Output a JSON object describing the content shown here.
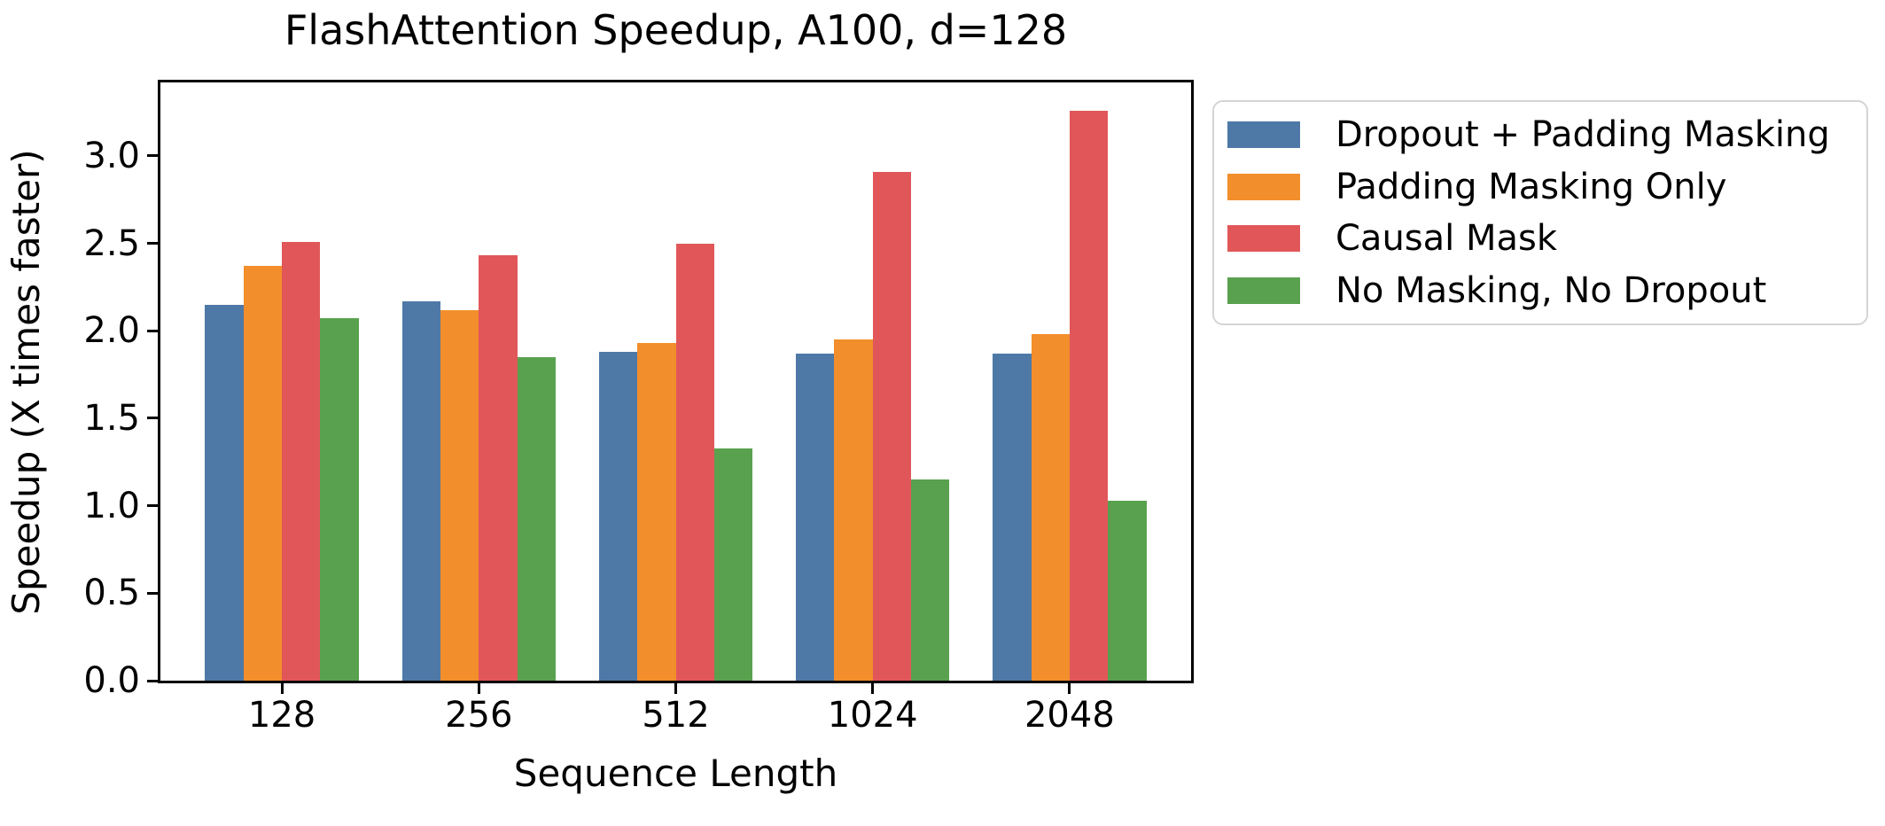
{
  "figure": {
    "background": "#ffffff",
    "axis_color": "#000000",
    "legend_border_color": "#d4d4d4"
  },
  "chart_data": {
    "type": "bar",
    "title": "FlashAttention Speedup, A100, d=128",
    "xlabel": "Sequence Length",
    "ylabel": "Speedup (X times faster)",
    "categories": [
      "128",
      "256",
      "512",
      "1024",
      "2048"
    ],
    "series": [
      {
        "name": "Dropout + Padding Masking",
        "color": "#4e79a7",
        "values": [
          2.15,
          2.17,
          1.88,
          1.87,
          1.87
        ]
      },
      {
        "name": "Padding Masking Only",
        "color": "#f28e2b",
        "values": [
          2.37,
          2.12,
          1.93,
          1.95,
          1.98
        ]
      },
      {
        "name": "Causal Mask",
        "color": "#e15759",
        "values": [
          2.51,
          2.43,
          2.5,
          2.91,
          3.26
        ]
      },
      {
        "name": "No Masking, No Dropout",
        "color": "#59a14f",
        "values": [
          2.07,
          1.85,
          1.33,
          1.15,
          1.03
        ]
      }
    ],
    "y_ticks": [
      0.0,
      0.5,
      1.0,
      1.5,
      2.0,
      2.5,
      3.0
    ],
    "y_tick_labels": [
      "0.0",
      "0.5",
      "1.0",
      "1.5",
      "2.0",
      "2.5",
      "3.0"
    ],
    "ylim": [
      0,
      3.42
    ],
    "grid": false,
    "legend_position": "outside-right"
  }
}
